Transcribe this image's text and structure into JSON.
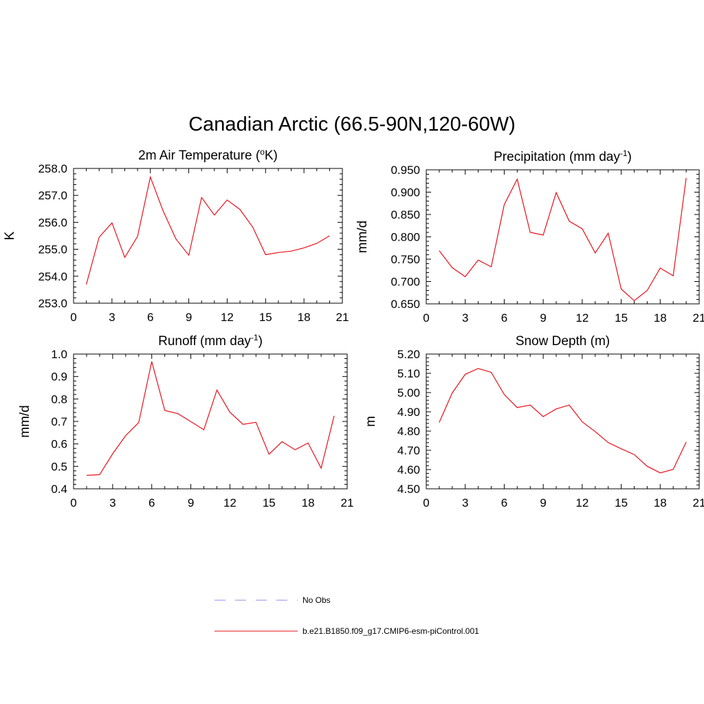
{
  "figure": {
    "title": "Canadian Arctic (66.5-90N,120-60W)"
  },
  "legend": {
    "items": [
      {
        "label": "No Obs",
        "color": "#8c8cf0",
        "style": "dashed"
      },
      {
        "label": "b.e21.B1850.f09_g17.CMIP6-esm-piControl.001",
        "color": "#e8101a",
        "style": "solid"
      }
    ]
  },
  "chart_data": [
    {
      "type": "line",
      "title": "2m Air Temperature (",
      "title_sup": "o",
      "title_post": "K)",
      "ylabel": "K",
      "xlim": [
        0,
        21
      ],
      "ylim": [
        253.0,
        258.0
      ],
      "xticks": [
        0,
        3,
        6,
        9,
        12,
        15,
        18,
        21
      ],
      "yticks": [
        "253.0",
        "254.0",
        "255.0",
        "256.0",
        "257.0",
        "258.0"
      ],
      "series": [
        {
          "color": "#e8101a",
          "x": [
            1,
            2,
            3,
            4,
            5,
            6,
            7,
            8,
            9,
            10,
            11,
            12,
            13,
            14,
            15,
            16,
            17,
            18,
            19,
            20
          ],
          "y": [
            253.7,
            255.45,
            255.98,
            254.7,
            255.48,
            257.68,
            256.42,
            255.38,
            254.78,
            256.92,
            256.27,
            256.83,
            256.48,
            255.82,
            254.8,
            254.88,
            254.93,
            255.05,
            255.22,
            255.5
          ]
        }
      ]
    },
    {
      "type": "line",
      "title": "Precipitation (mm day",
      "title_sup": "-1",
      "title_post": ")",
      "ylabel": "mm/d",
      "xlim": [
        0,
        21
      ],
      "ylim": [
        0.65,
        0.95
      ],
      "xticks": [
        0,
        3,
        6,
        9,
        12,
        15,
        18,
        21
      ],
      "yticks": [
        "0.650",
        "0.700",
        "0.750",
        "0.800",
        "0.850",
        "0.900",
        "0.950"
      ],
      "series": [
        {
          "color": "#e8101a",
          "x": [
            1,
            2,
            3,
            4,
            5,
            6,
            7,
            8,
            9,
            10,
            11,
            12,
            13,
            14,
            15,
            16,
            17,
            18,
            19,
            20
          ],
          "y": [
            0.769,
            0.731,
            0.711,
            0.748,
            0.733,
            0.872,
            0.929,
            0.81,
            0.804,
            0.899,
            0.835,
            0.818,
            0.764,
            0.808,
            0.683,
            0.657,
            0.68,
            0.73,
            0.713,
            0.932
          ]
        }
      ]
    },
    {
      "type": "line",
      "title": "Runoff (mm day",
      "title_sup": "-1",
      "title_post": ")",
      "ylabel": "mm/d",
      "xlim": [
        0,
        21
      ],
      "ylim": [
        0.4,
        1.0
      ],
      "xticks": [
        0,
        3,
        6,
        9,
        12,
        15,
        18,
        21
      ],
      "yticks": [
        "0.4",
        "0.5",
        "0.6",
        "0.7",
        "0.8",
        "0.9",
        "1.0"
      ],
      "series": [
        {
          "color": "#e8101a",
          "x": [
            1,
            2,
            3,
            4,
            5,
            6,
            7,
            8,
            9,
            10,
            11,
            12,
            13,
            14,
            15,
            16,
            17,
            18,
            19,
            20
          ],
          "y": [
            0.46,
            0.463,
            0.556,
            0.637,
            0.695,
            0.967,
            0.749,
            0.735,
            0.699,
            0.663,
            0.84,
            0.741,
            0.687,
            0.696,
            0.554,
            0.61,
            0.574,
            0.604,
            0.492,
            0.725
          ]
        }
      ]
    },
    {
      "type": "line",
      "title": "Snow Depth (m)",
      "title_sup": "",
      "title_post": "",
      "ylabel": "m",
      "xlim": [
        0,
        21
      ],
      "ylim": [
        4.5,
        5.2
      ],
      "xticks": [
        0,
        3,
        6,
        9,
        12,
        15,
        18,
        21
      ],
      "yticks": [
        "4.50",
        "4.60",
        "4.70",
        "4.80",
        "4.90",
        "5.00",
        "5.10",
        "5.20"
      ],
      "series": [
        {
          "color": "#e8101a",
          "x": [
            1,
            2,
            3,
            4,
            5,
            6,
            7,
            8,
            9,
            10,
            11,
            12,
            13,
            14,
            15,
            16,
            17,
            18,
            19,
            20
          ],
          "y": [
            4.845,
            4.998,
            5.095,
            5.125,
            5.105,
            4.99,
            4.922,
            4.935,
            4.875,
            4.915,
            4.935,
            4.848,
            4.797,
            4.74,
            4.708,
            4.678,
            4.617,
            4.583,
            4.601,
            4.743
          ]
        }
      ]
    }
  ]
}
